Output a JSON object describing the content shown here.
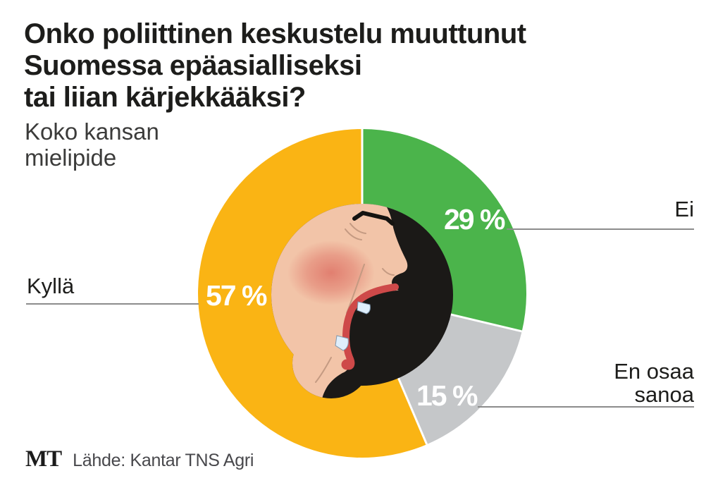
{
  "title": {
    "lines": [
      "Onko poliittinen keskustelu muuttunut",
      "Suomessa epäasialliseksi",
      "tai liian kärjekkääksi?"
    ]
  },
  "subtitle": {
    "lines": [
      "Koko kansan",
      "mielipide"
    ]
  },
  "footer": {
    "logo": "MT",
    "source": "Lähde: Kantar TNS Agri"
  },
  "chart_data": {
    "type": "pie",
    "variant": "donut",
    "title": "Onko poliittinen keskustelu muuttunut Suomessa epäasialliseksi tai liian kärjekkääksi?",
    "subtitle": "Koko kansan mielipide",
    "unit": "%",
    "start_angle_deg": 0,
    "direction": "clockwise",
    "donut_hole_ratio": 0.55,
    "separator_color": "#ffffff",
    "leader_line_color": "#8c8c8c",
    "categories": [
      "Ei",
      "En osaa sanoa",
      "Kyllä"
    ],
    "values": [
      29,
      15,
      57
    ],
    "slices": [
      {
        "label": "Ei",
        "value": 29,
        "display": "29 %",
        "color": "#4bb44b"
      },
      {
        "label": "En osaa sanoa",
        "value": 15,
        "display": "15 %",
        "color": "#c5c7c9"
      },
      {
        "label": "Kyllä",
        "value": 57,
        "display": "57 %",
        "color": "#fab414"
      }
    ],
    "center_illustration": "shouting-face-profile"
  }
}
